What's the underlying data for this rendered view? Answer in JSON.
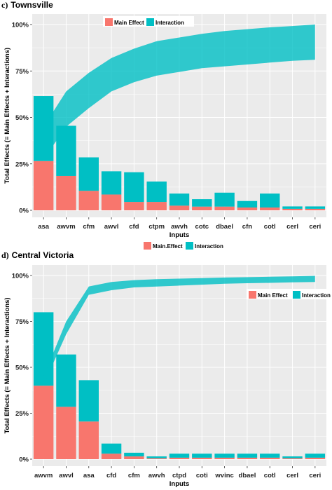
{
  "colors": {
    "main_effect": "#f8766d",
    "interaction": "#00bfc4",
    "panel_bg": "#ebebeb",
    "grid": "#ffffff"
  },
  "chart_data": [
    {
      "type": "bar",
      "panel_letter": "c)",
      "title": "Townsville",
      "xlabel": "Inputs",
      "ylabel": "Total Effects (= Main Effects + Interactions)",
      "y_tick_labels": [
        "0%",
        "25%",
        "50%",
        "75%",
        "100%"
      ],
      "ylim": [
        0,
        100
      ],
      "stacked": true,
      "grid": true,
      "legend_position": "top-left",
      "legend": [
        "Main Effect",
        "Interaction"
      ],
      "categories": [
        "asa",
        "awvm",
        "cfm",
        "awvl",
        "cfd",
        "ctpm",
        "awvh",
        "cotc",
        "dbael",
        "cfn",
        "cotl",
        "cerl",
        "ceri"
      ],
      "series": [
        {
          "name": "Main Effect",
          "values": [
            26.5,
            18.5,
            10.5,
            8.5,
            4.5,
            4.5,
            2.5,
            2.0,
            2.0,
            1.5,
            1.5,
            0.8,
            0.8
          ]
        },
        {
          "name": "Interaction",
          "values": [
            35.0,
            27.0,
            18.0,
            12.5,
            16.0,
            11.0,
            6.5,
            4.0,
            7.5,
            3.5,
            7.5,
            1.3,
            1.3
          ]
        }
      ],
      "cumulative_band": {
        "lower": [
          27.5,
          45.0,
          55.0,
          64.0,
          69.0,
          72.5,
          74.5,
          76.5,
          77.5,
          78.5,
          79.5,
          80.5,
          81.0
        ],
        "upper": [
          45.0,
          64.0,
          74.0,
          82.0,
          87.0,
          91.0,
          93.0,
          95.0,
          96.5,
          97.5,
          98.5,
          99.2,
          100.0
        ]
      }
    },
    {
      "type": "bar",
      "panel_letter": "d)",
      "title": "Central Victoria",
      "xlabel": "Inputs",
      "ylabel": "Total Effects (= Main Effects + Interactions)",
      "y_tick_labels": [
        "0%",
        "25%",
        "50%",
        "75%",
        "100%"
      ],
      "ylim": [
        0,
        100
      ],
      "stacked": true,
      "grid": true,
      "legend_position": "top-right",
      "legend": [
        "Main Effect",
        "Interaction"
      ],
      "outer_legend": [
        "Main.Effect",
        "Interaction"
      ],
      "categories": [
        "awvm",
        "awvl",
        "asa",
        "cfd",
        "cfm",
        "awvh",
        "ctpd",
        "coti",
        "wvinc",
        "dbael",
        "cotl",
        "cerl",
        "ceri"
      ],
      "series": [
        {
          "name": "Main Effect",
          "values": [
            40.0,
            28.5,
            20.5,
            3.0,
            1.5,
            0.5,
            0.8,
            0.8,
            0.8,
            0.8,
            0.8,
            0.5,
            0.8
          ]
        },
        {
          "name": "Interaction",
          "values": [
            40.0,
            28.5,
            22.5,
            5.5,
            2.0,
            1.0,
            2.2,
            2.2,
            2.2,
            2.2,
            2.2,
            1.0,
            2.2
          ]
        }
      ],
      "cumulative_band": {
        "lower": [
          40.5,
          68.0,
          89.5,
          92.0,
          93.5,
          94.0,
          94.5,
          95.0,
          95.5,
          95.8,
          96.0,
          96.3,
          96.5
        ],
        "upper": [
          45.0,
          75.0,
          94.0,
          96.5,
          97.5,
          98.0,
          98.3,
          98.6,
          98.9,
          99.1,
          99.3,
          99.5,
          99.8
        ]
      }
    }
  ]
}
